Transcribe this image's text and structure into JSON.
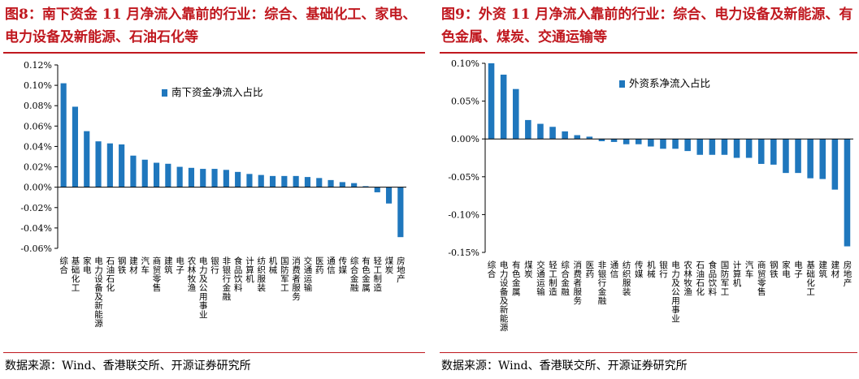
{
  "colors": {
    "accent": "#c0181f",
    "bar": "#1f77bd"
  },
  "left": {
    "title": "图8：南下资金 11 月净流入靠前的行业：综合、基础化工、家电、电力设备及新能源、石油石化等",
    "source": "数据来源：Wind、香港联交所、开源证券研究所",
    "chart_data": {
      "type": "bar",
      "legend": "南下资金净流入占比",
      "legend_position": "top-right",
      "grid": false,
      "ylim": [
        -0.06,
        0.12
      ],
      "yticks": [
        "0.12%",
        "0.10%",
        "0.08%",
        "0.06%",
        "0.04%",
        "0.02%",
        "0.00%",
        "-0.02%",
        "-0.04%",
        "-0.06%"
      ],
      "ytick_values": [
        0.12,
        0.1,
        0.08,
        0.06,
        0.04,
        0.02,
        0.0,
        -0.02,
        -0.04,
        -0.06
      ],
      "categories": [
        "综合",
        "基础化工",
        "家电",
        "电力设备及新能源",
        "石油石化",
        "钢铁",
        "建材",
        "汽车",
        "商贸零售",
        "建筑",
        "电子",
        "农林牧渔",
        "电力及公用事业",
        "银行",
        "非银行金融",
        "食品饮料",
        "计算机",
        "纺织服装",
        "机械",
        "国防军工",
        "消费者服务",
        "交通运输",
        "医药",
        "通信",
        "传媒",
        "综合金融",
        "有色金属",
        "轻工制造",
        "煤炭",
        "房地产"
      ],
      "values": [
        0.102,
        0.079,
        0.055,
        0.045,
        0.043,
        0.042,
        0.031,
        0.027,
        0.024,
        0.023,
        0.02,
        0.019,
        0.018,
        0.018,
        0.017,
        0.015,
        0.013,
        0.012,
        0.011,
        0.011,
        0.011,
        0.01,
        0.009,
        0.007,
        0.005,
        0.004,
        0.001,
        -0.005,
        -0.016,
        -0.049
      ]
    }
  },
  "right": {
    "title": "图9：外资 11 月净流入靠前的行业：综合、电力设备及新能源、有色金属、煤炭、交通运输等",
    "source": "数据来源：Wind、香港联交所、开源证券研究所",
    "chart_data": {
      "type": "bar",
      "legend": "外资系净流入占比",
      "legend_position": "top-center",
      "grid": false,
      "ylim": [
        -0.15,
        0.1
      ],
      "yticks": [
        "0.10%",
        "0.05%",
        "0.00%",
        "-0.05%",
        "-0.10%",
        "-0.15%"
      ],
      "ytick_values": [
        0.1,
        0.05,
        0.0,
        -0.05,
        -0.1,
        -0.15
      ],
      "categories": [
        "综合",
        "电力设备及新能源",
        "有色金属",
        "煤炭",
        "交通运输",
        "轻工制造",
        "综合金融",
        "消费者服务",
        "医药",
        "非银行金融",
        "通信",
        "纺织服装",
        "传媒",
        "机械",
        "银行",
        "电力及公用事业",
        "农林牧渔",
        "石油石化",
        "食品饮料",
        "国防军工",
        "计算机",
        "汽车",
        "商贸零售",
        "钢铁",
        "家电",
        "电子",
        "基础化工",
        "建筑",
        "建材",
        "房地产"
      ],
      "values": [
        0.1,
        0.085,
        0.066,
        0.025,
        0.02,
        0.016,
        0.01,
        0.005,
        0.003,
        -0.003,
        -0.004,
        -0.007,
        -0.007,
        -0.01,
        -0.013,
        -0.013,
        -0.016,
        -0.021,
        -0.021,
        -0.021,
        -0.025,
        -0.025,
        -0.033,
        -0.034,
        -0.045,
        -0.045,
        -0.052,
        -0.053,
        -0.067,
        -0.142
      ]
    }
  }
}
